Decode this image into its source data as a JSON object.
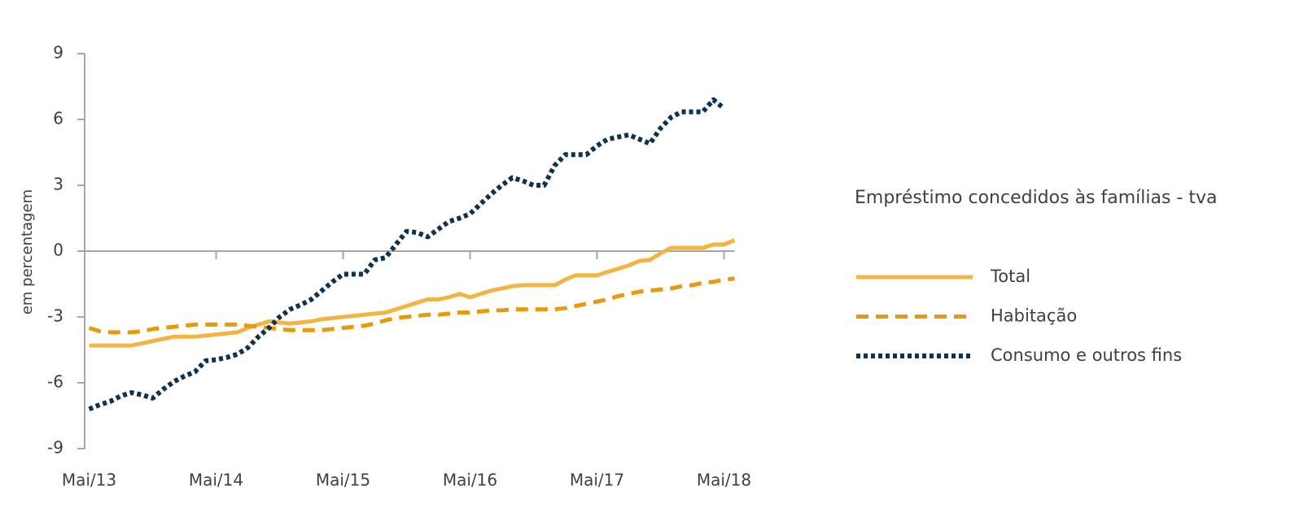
{
  "chart_data": {
    "type": "line",
    "ylabel": "em percentagem",
    "legend_title": "Empréstimo concedidos às famílias - tva",
    "categories": [
      "Mai/13",
      null,
      null,
      null,
      null,
      null,
      null,
      null,
      null,
      null,
      null,
      null,
      "Mai/14",
      null,
      null,
      null,
      null,
      null,
      null,
      null,
      null,
      null,
      null,
      null,
      "Mai/15",
      null,
      null,
      null,
      null,
      null,
      null,
      null,
      null,
      null,
      null,
      null,
      "Mai/16",
      null,
      null,
      null,
      null,
      null,
      null,
      null,
      null,
      null,
      null,
      null,
      "Mai/17",
      null,
      null,
      null,
      null,
      null,
      null,
      null,
      null,
      null,
      null,
      null,
      "Mai/18",
      null
    ],
    "series": [
      {
        "name": "Total",
        "color": "#f2b544",
        "dash": "solid",
        "values": [
          -4.3,
          -4.3,
          -4.3,
          -4.3,
          -4.3,
          -4.2,
          -4.1,
          -4.0,
          -3.9,
          -3.9,
          -3.9,
          -3.85,
          -3.8,
          -3.75,
          -3.7,
          -3.5,
          -3.35,
          -3.2,
          -3.25,
          -3.3,
          -3.25,
          -3.2,
          -3.1,
          -3.05,
          -3.0,
          -2.95,
          -2.9,
          -2.85,
          -2.8,
          -2.65,
          -2.5,
          -2.35,
          -2.2,
          -2.2,
          -2.1,
          -1.95,
          -2.1,
          -1.95,
          -1.8,
          -1.7,
          -1.6,
          -1.55,
          -1.55,
          -1.55,
          -1.55,
          -1.3,
          -1.1,
          -1.1,
          -1.1,
          -0.95,
          -0.8,
          -0.65,
          -0.45,
          -0.4,
          -0.1,
          0.15,
          0.15,
          0.15,
          0.15,
          0.3,
          0.3,
          0.5
        ]
      },
      {
        "name": "Habitação",
        "color": "#e89a0f",
        "dash": "dashed",
        "values": [
          -3.5,
          -3.65,
          -3.7,
          -3.7,
          -3.7,
          -3.65,
          -3.55,
          -3.5,
          -3.45,
          -3.4,
          -3.35,
          -3.35,
          -3.35,
          -3.35,
          -3.35,
          -3.4,
          -3.45,
          -3.5,
          -3.55,
          -3.6,
          -3.6,
          -3.6,
          -3.6,
          -3.55,
          -3.5,
          -3.45,
          -3.4,
          -3.3,
          -3.15,
          -3.05,
          -3.0,
          -2.95,
          -2.9,
          -2.9,
          -2.85,
          -2.8,
          -2.8,
          -2.75,
          -2.7,
          -2.7,
          -2.65,
          -2.65,
          -2.65,
          -2.65,
          -2.65,
          -2.6,
          -2.5,
          -2.4,
          -2.3,
          -2.2,
          -2.05,
          -1.95,
          -1.85,
          -1.8,
          -1.75,
          -1.7,
          -1.6,
          -1.55,
          -1.45,
          -1.4,
          -1.3,
          -1.25
        ]
      },
      {
        "name": "Consumo e outros fins",
        "color": "#0d3350",
        "dash": "dotted",
        "values": [
          -7.2,
          -7.0,
          -6.85,
          -6.6,
          -6.45,
          -6.55,
          -6.7,
          -6.3,
          -5.95,
          -5.7,
          -5.5,
          -5.0,
          -4.95,
          -4.85,
          -4.7,
          -4.4,
          -3.9,
          -3.5,
          -3.0,
          -2.65,
          -2.45,
          -2.2,
          -1.8,
          -1.4,
          -1.05,
          -1.05,
          -1.05,
          -0.4,
          -0.3,
          0.3,
          0.9,
          0.85,
          0.65,
          1.0,
          1.35,
          1.5,
          1.7,
          2.15,
          2.6,
          3.0,
          3.35,
          3.2,
          3.0,
          3.0,
          3.9,
          4.4,
          4.4,
          4.4,
          4.8,
          5.1,
          5.2,
          5.3,
          5.1,
          4.9,
          5.6,
          6.1,
          6.35,
          6.35,
          6.35,
          6.9,
          6.5,
          null
        ]
      }
    ],
    "ylim": [
      -9,
      9
    ],
    "yticks": [
      9,
      6,
      3,
      0,
      -3,
      -6,
      -9
    ],
    "grid": false
  }
}
